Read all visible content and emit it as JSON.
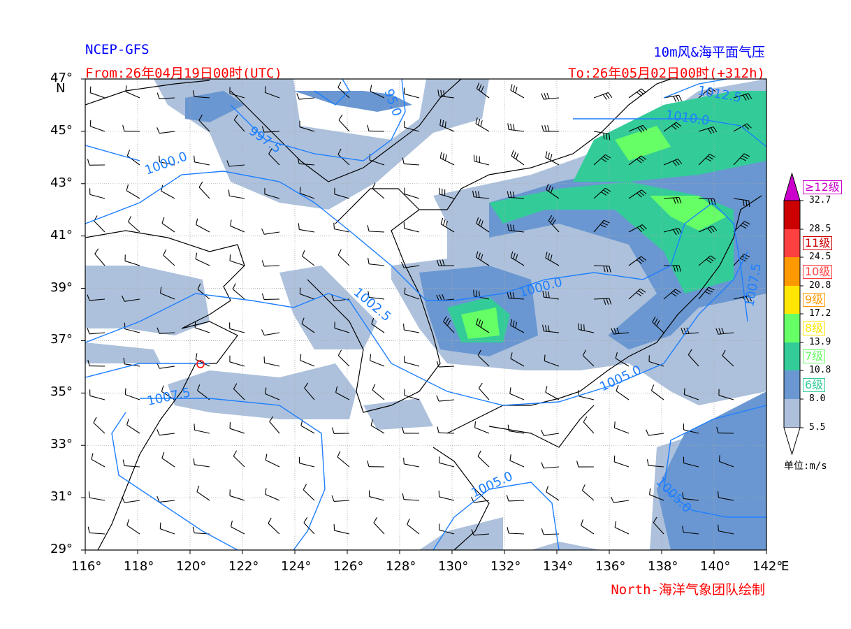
{
  "header": {
    "model": "NCEP-GFS",
    "product": "10m风&海平面气压",
    "from": "From:26年04月19日00时(UTC)",
    "to": "To:26年05月02日00时(+312h)"
  },
  "footer": {
    "credit": "North-海洋气象团队绘制"
  },
  "axes": {
    "lon_ticks": [
      "116°",
      "118°",
      "120°",
      "122°",
      "124°",
      "126°",
      "128°",
      "130°",
      "132°",
      "134°",
      "136°",
      "138°",
      "140°",
      "142°"
    ],
    "lon_suffix": "E",
    "lat_ticks": [
      "47°",
      "45°",
      "43°",
      "41°",
      "39°",
      "37°",
      "35°",
      "33°",
      "31°",
      "29°"
    ],
    "lat_suffix": "N",
    "lon_range": [
      116,
      142
    ],
    "lat_range": [
      29,
      47
    ],
    "grid": true
  },
  "isobar_labels": [
    "95.0",
    "997.5",
    "1000.0",
    "1000.0",
    "1002.5",
    "1005.0",
    "1005.0",
    "1005.0",
    "1007.5",
    "1007.5",
    "1010.0",
    "1012.5"
  ],
  "colorbar": {
    "unit": "单位:m/s",
    "ticks": [
      "32.7",
      "28.5",
      "24.5",
      "20.8",
      "17.2",
      "13.9",
      "10.8",
      "8.0",
      "5.5"
    ],
    "levels": [
      {
        "label": "≥12级",
        "color": "#cc00cc"
      },
      {
        "label": "11级",
        "color": "#cc0000"
      },
      {
        "label": "10级",
        "color": "#ff4040"
      },
      {
        "label": "9级",
        "color": "#ff9900"
      },
      {
        "label": "8级",
        "color": "#ffe600"
      },
      {
        "label": "7级",
        "color": "#66ff66"
      },
      {
        "label": "6级",
        "color": "#33cc99"
      }
    ],
    "bands": [
      "#cc00cc",
      "#cc0000",
      "#ff4040",
      "#ff9900",
      "#ffe600",
      "#66ff66",
      "#33cc99",
      "#6a97d1",
      "#adc1dc",
      "#ffffff"
    ]
  },
  "colors": {
    "isobar": "#1e7fff",
    "light": "#adc1dc",
    "mid": "#6a97d1",
    "teal": "#33cc99",
    "green": "#66ff66"
  }
}
